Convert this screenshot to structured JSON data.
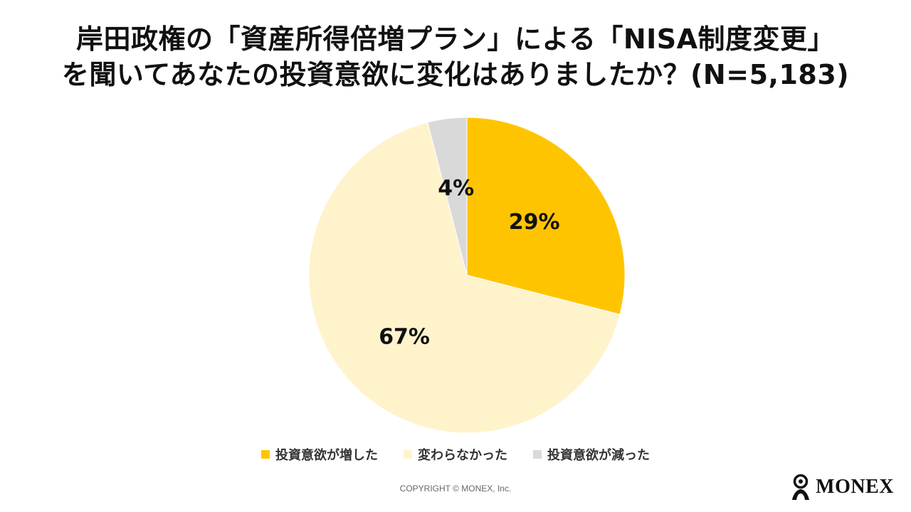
{
  "title": {
    "line1": "岸田政権の「資産所得倍増プラン」による「NISA制度変更」",
    "line2": "を聞いてあなたの投資意欲に変化はありましたか？(N=5,183)"
  },
  "chart_data": {
    "type": "pie",
    "title": "岸田政権の「資産所得倍増プラン」による「NISA制度変更」を聞いてあなたの投資意欲に変化はありましたか？(N=5,183)",
    "legend_position": "bottom",
    "slices": [
      {
        "label": "投資意欲が増した",
        "value": 29,
        "display": "29%",
        "color": "#FFC400"
      },
      {
        "label": "変わらなかった",
        "value": 67,
        "display": "67%",
        "color": "#FFF3CC"
      },
      {
        "label": "投資意欲が減った",
        "value": 4,
        "display": "4%",
        "color": "#D9D9D9"
      }
    ]
  },
  "legend": {
    "items": [
      {
        "label": "投資意欲が増した",
        "color": "#FFC400"
      },
      {
        "label": "変わらなかった",
        "color": "#FFF3CC"
      },
      {
        "label": "投資意欲が減った",
        "color": "#D9D9D9"
      }
    ]
  },
  "footer": {
    "copyright": "COPYRIGHT © MONEX, Inc."
  },
  "brand": {
    "name": "MONEX",
    "icon": "monex-person-logo-icon"
  }
}
